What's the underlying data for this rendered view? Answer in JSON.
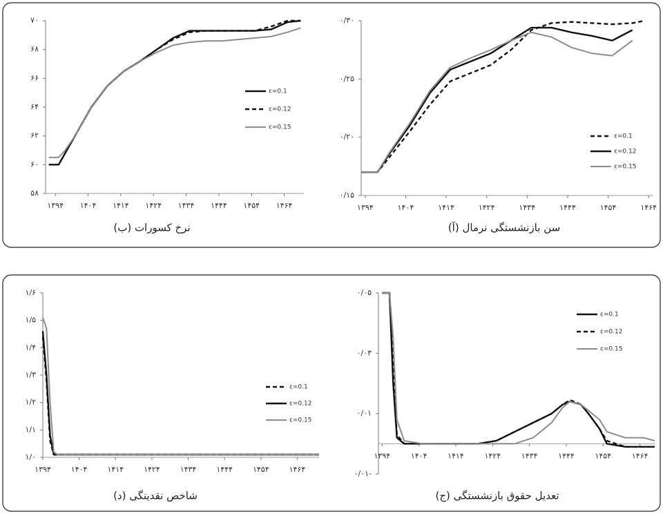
{
  "chart_data": [
    {
      "type": "line",
      "title": "(ب) نرخ کسورات",
      "x": [
        1392,
        1395,
        1397,
        1400,
        1405,
        1410,
        1415,
        1420,
        1425,
        1430,
        1435,
        1440,
        1445,
        1450,
        1455,
        1460,
        1465,
        1469
      ],
      "series": [
        {
          "name": "ε=0.1",
          "color": "#111111",
          "dash": false,
          "values": [
            60,
            60,
            60.8,
            62,
            64,
            65.5,
            66.5,
            67.2,
            68,
            68.8,
            69.3,
            69.3,
            69.3,
            69.3,
            69.3,
            69.4,
            69.9,
            70
          ]
        },
        {
          "name": "ε=0.12",
          "color": "#111111",
          "dash": true,
          "values": [
            60,
            60,
            60.8,
            62,
            64,
            65.5,
            66.5,
            67.2,
            68,
            68.7,
            69.2,
            69.3,
            69.3,
            69.3,
            69.3,
            69.6,
            70,
            70
          ]
        },
        {
          "name": "ε=0.15",
          "color": "#8c8c8c",
          "dash": false,
          "values": [
            60.5,
            60.5,
            61,
            62,
            64,
            65.5,
            66.5,
            67.2,
            67.8,
            68.3,
            68.5,
            68.6,
            68.6,
            68.7,
            68.8,
            68.9,
            69.2,
            69.5
          ]
        }
      ],
      "xlim": [
        1391,
        1470
      ],
      "ylim": [
        58,
        70
      ],
      "xticks": [
        {
          "value": 1394,
          "label": "۱۳۹۴"
        },
        {
          "value": 1404,
          "label": "۱۴۰۴"
        },
        {
          "value": 1414,
          "label": "۱۴۱۴"
        },
        {
          "value": 1424,
          "label": "۱۴۲۴"
        },
        {
          "value": 1434,
          "label": "۱۴۳۴"
        },
        {
          "value": 1444,
          "label": "۱۴۴۴"
        },
        {
          "value": 1454,
          "label": "۱۴۵۴"
        },
        {
          "value": 1464,
          "label": "۱۴۶۴"
        }
      ],
      "yticks": [
        {
          "value": 58,
          "label": "۵۸"
        },
        {
          "value": 60,
          "label": "۶۰"
        },
        {
          "value": 62,
          "label": "۶۲"
        },
        {
          "value": 64,
          "label": "۶۴"
        },
        {
          "value": 66,
          "label": "۶۶"
        },
        {
          "value": 68,
          "label": "۶۸"
        },
        {
          "value": 70,
          "label": "۷۰"
        }
      ]
    },
    {
      "type": "line",
      "title": "(آ) سن بازنشستگی نرمال",
      "x": [
        1393,
        1397,
        1400,
        1405,
        1410,
        1415,
        1420,
        1425,
        1430,
        1435,
        1440,
        1445,
        1450,
        1455,
        1460,
        1463
      ],
      "series": [
        {
          "name": "ε=0.1",
          "color": "#111111",
          "dash": true,
          "values": [
            0.17,
            0.17,
            0.183,
            0.205,
            0.228,
            0.248,
            0.255,
            0.262,
            0.275,
            0.292,
            0.298,
            0.299,
            0.298,
            0.297,
            0.298,
            0.3
          ]
        },
        {
          "name": "ε=0.12",
          "color": "#111111",
          "dash": false,
          "values": [
            0.17,
            0.17,
            0.186,
            0.21,
            0.238,
            0.258,
            0.265,
            0.272,
            0.283,
            0.294,
            0.294,
            0.29,
            0.287,
            0.283,
            0.292,
            null
          ]
        },
        {
          "name": "ε=0.15",
          "color": "#8c8c8c",
          "dash": false,
          "values": [
            0.17,
            0.17,
            0.187,
            0.212,
            0.24,
            0.26,
            0.268,
            0.275,
            0.283,
            0.29,
            0.286,
            0.277,
            0.272,
            0.27,
            0.283,
            null
          ]
        }
      ],
      "xlim": [
        1393,
        1465
      ],
      "ylim": [
        0.15,
        0.3
      ],
      "xticks": [
        {
          "value": 1394,
          "label": "۱۳۹۴"
        },
        {
          "value": 1404,
          "label": "۱۴۰۴"
        },
        {
          "value": 1414,
          "label": "۱۴۱۴"
        },
        {
          "value": 1424,
          "label": "۱۴۲۴"
        },
        {
          "value": 1434,
          "label": "۱۴۳۴"
        },
        {
          "value": 1444,
          "label": "۱۴۴۴"
        },
        {
          "value": 1454,
          "label": "۱۴۵۴"
        },
        {
          "value": 1464,
          "label": "۱۴۶۴"
        }
      ],
      "yticks": [
        {
          "value": 0.15,
          "label": "۰/۱۵"
        },
        {
          "value": 0.2,
          "label": "۰/۲۰"
        },
        {
          "value": 0.25,
          "label": "۰/۲۵"
        },
        {
          "value": 0.3,
          "label": "۰/۳۰"
        }
      ]
    },
    {
      "type": "line",
      "title": "(د) شاخص نقدینگی",
      "x": [
        1394,
        1395,
        1396,
        1397,
        1398,
        1470
      ],
      "series": [
        {
          "name": "ε=0.1",
          "color": "#111111",
          "dash": true,
          "values": [
            1.44,
            1.28,
            1.06,
            1.01,
            1.01,
            1.01
          ]
        },
        {
          "name": "ε=0.12",
          "color": "#111111",
          "dash": false,
          "values": [
            1.46,
            1.3,
            1.08,
            1.01,
            1.01,
            1.01
          ]
        },
        {
          "name": "ε=0.15",
          "color": "#8c8c8c",
          "dash": false,
          "values": [
            1.51,
            1.47,
            1.2,
            1.02,
            1.01,
            1.01
          ]
        }
      ],
      "xlim": [
        1394,
        1470
      ],
      "ylim": [
        1,
        1.6
      ],
      "xticks": [
        {
          "value": 1394,
          "label": "۱۳۹۴"
        },
        {
          "value": 1404,
          "label": "۱۴۰۴"
        },
        {
          "value": 1414,
          "label": "۱۴۱۴"
        },
        {
          "value": 1424,
          "label": "۱۴۲۴"
        },
        {
          "value": 1434,
          "label": "۱۴۳۴"
        },
        {
          "value": 1444,
          "label": "۱۴۴۴"
        },
        {
          "value": 1454,
          "label": "۱۴۵۴"
        },
        {
          "value": 1464,
          "label": "۱۴۶۴"
        }
      ],
      "yticks": [
        {
          "value": 1,
          "label": "۱/۰"
        },
        {
          "value": 1.1,
          "label": "۱/۱"
        },
        {
          "value": 1.2,
          "label": "۱/۲"
        },
        {
          "value": 1.3,
          "label": "۱/۳"
        },
        {
          "value": 1.4,
          "label": "۱/۴"
        },
        {
          "value": 1.5,
          "label": "۱/۵"
        },
        {
          "value": 1.6,
          "label": "۱/۶"
        }
      ]
    },
    {
      "type": "line",
      "title": "(ج) تعدیل حقوق بازنشستگی",
      "x": [
        1394,
        1396,
        1397,
        1398,
        1400,
        1405,
        1420,
        1425,
        1430,
        1435,
        1440,
        1443,
        1445,
        1448,
        1450,
        1453,
        1455,
        1460,
        1465,
        1468
      ],
      "series": [
        {
          "name": "ε=0.1",
          "color": "#111111",
          "dash": false,
          "values": [
            0.05,
            0.05,
            0.02,
            0.002,
            0,
            0,
            0,
            0.001,
            0.004,
            0.007,
            0.01,
            0.013,
            0.014,
            0.013,
            0.01,
            0.005,
            0,
            -0.001,
            -0.001,
            -0.001
          ]
        },
        {
          "name": "ε=0.12",
          "color": "#111111",
          "dash": true,
          "values": [
            0.05,
            0.05,
            0.025,
            0.003,
            0,
            0,
            0,
            0.001,
            0.004,
            0.007,
            0.01,
            0.013,
            0.0145,
            0.013,
            0.01,
            0.005,
            0.001,
            -0.001,
            -0.001,
            -0.001
          ]
        },
        {
          "name": "ε=0.15",
          "color": "#8c8c8c",
          "dash": false,
          "values": [
            0.05,
            0.05,
            0.035,
            0.008,
            0.001,
            0,
            0,
            0,
            0,
            0.002,
            0.007,
            0.012,
            0.014,
            0.013,
            0.011,
            0.008,
            0.004,
            0.002,
            0.002,
            0.001
          ]
        }
      ],
      "xlim": [
        1393,
        1468
      ],
      "ylim": [
        -0.01,
        0.05
      ],
      "xticks": [
        {
          "value": 1394,
          "label": "۱۳۹۴"
        },
        {
          "value": 1404,
          "label": "۱۴۰۴"
        },
        {
          "value": 1414,
          "label": "۱۴۱۴"
        },
        {
          "value": 1424,
          "label": "۱۴۲۴"
        },
        {
          "value": 1434,
          "label": "۱۴۳۴"
        },
        {
          "value": 1444,
          "label": "۱۴۴۴"
        },
        {
          "value": 1454,
          "label": "۱۴۵۴"
        },
        {
          "value": 1464,
          "label": "۱۴۶۴"
        }
      ],
      "yticks": [
        {
          "value": -0.01,
          "label": "۰/۰۱-"
        },
        {
          "value": 0.01,
          "label": "۰/۰۱"
        },
        {
          "value": 0.03,
          "label": "۰/۰۳"
        },
        {
          "value": 0.05,
          "label": "۰/۰۵"
        }
      ]
    }
  ]
}
